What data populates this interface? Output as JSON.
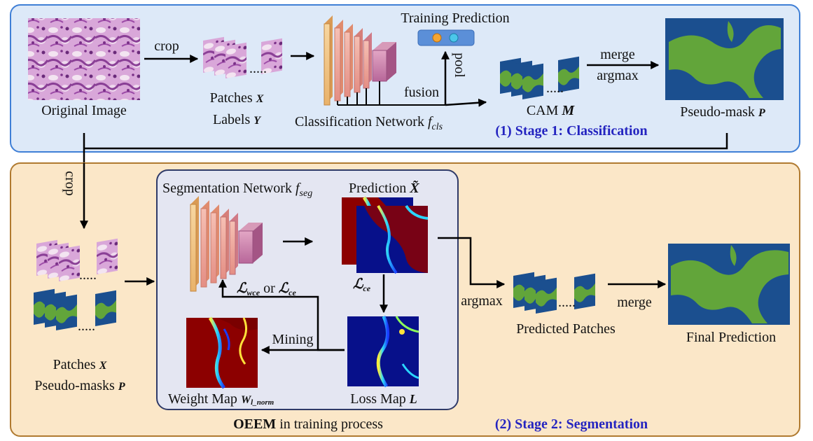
{
  "colors": {
    "stage1_bg": "#dde9f8",
    "stage1_border": "#3f7fd6",
    "stage2_bg": "#fbe4c2",
    "stage2_border": "#b07a30",
    "oeem_bg": "#e4e6f2",
    "oeem_border": "#2f3a68",
    "stage_title": "#2424c0",
    "mask_blue": "#1b4f8f",
    "mask_green": "#62a53a",
    "heat_red": "#8c0000",
    "heat_blue": "#07108a",
    "pink_tissue": "#c98fd0"
  },
  "stage1": {
    "original_image": "Original  Image",
    "crop": "crop",
    "patches_label": "Patches",
    "patches_var": "X",
    "labels_label": "Labels",
    "labels_var": "Y",
    "training_prediction": "Training Prediction",
    "pool": "pool",
    "fusion": "fusion",
    "classification_network": "Classification Network",
    "f_sym": "f",
    "cls_sub": "cls",
    "cam_label": "CAM",
    "cam_var": "M",
    "merge": "merge",
    "argmax": "argmax",
    "pseudo_mask_label": "Pseudo-mask",
    "pseudo_mask_var": "P",
    "dots": ".....",
    "title": "(1) Stage 1: Classification"
  },
  "stage2": {
    "crop": "crop",
    "segmentation_network": "Segmentation Network",
    "f_sym": "f",
    "seg_sub": "seg",
    "prediction_label": "Prediction",
    "prediction_var": "X̃",
    "loss_sym": "ℒ",
    "wce_sub": "wce",
    "or_text": "or",
    "ce_sub": "ce",
    "mining": "Mining",
    "weight_map_label": "Weight Map",
    "weight_map_var": "W",
    "weight_map_sub": "l_norm",
    "loss_map_label": "Loss Map",
    "loss_map_var": "L",
    "patches_label": "Patches",
    "patches_var": "X",
    "pseudo_masks_label": "Pseudo-masks",
    "pseudo_masks_var": "P",
    "argmax": "argmax",
    "predicted_patches": "Predicted Patches",
    "merge": "merge",
    "final_prediction": "Final Prediction",
    "oeem_bold": "OEEM",
    "oeem_rest": " in training process",
    "dots": ".....",
    "title": "(2) Stage 2: Segmentation"
  }
}
